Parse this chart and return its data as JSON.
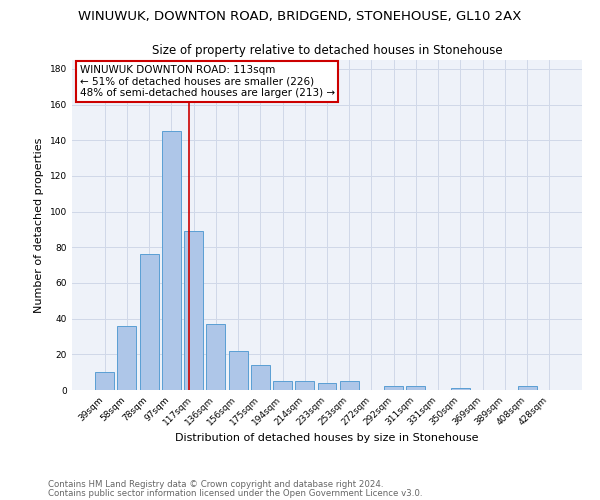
{
  "title": "WINUWUK, DOWNTON ROAD, BRIDGEND, STONEHOUSE, GL10 2AX",
  "subtitle": "Size of property relative to detached houses in Stonehouse",
  "xlabel": "Distribution of detached houses by size in Stonehouse",
  "ylabel": "Number of detached properties",
  "footnote1": "Contains HM Land Registry data © Crown copyright and database right 2024.",
  "footnote2": "Contains public sector information licensed under the Open Government Licence v3.0.",
  "categories": [
    "39sqm",
    "58sqm",
    "78sqm",
    "97sqm",
    "117sqm",
    "136sqm",
    "156sqm",
    "175sqm",
    "194sqm",
    "214sqm",
    "233sqm",
    "253sqm",
    "272sqm",
    "292sqm",
    "311sqm",
    "331sqm",
    "350sqm",
    "369sqm",
    "389sqm",
    "408sqm",
    "428sqm"
  ],
  "values": [
    10,
    36,
    76,
    145,
    89,
    37,
    22,
    14,
    5,
    5,
    4,
    5,
    0,
    2,
    2,
    0,
    1,
    0,
    0,
    2,
    0
  ],
  "bar_color": "#aec6e8",
  "bar_edge_color": "#5a9fd4",
  "vline_color": "#cc0000",
  "annotation_text": "WINUWUK DOWNTON ROAD: 113sqm\n← 51% of detached houses are smaller (226)\n48% of semi-detached houses are larger (213) →",
  "annotation_box_color": "#cc0000",
  "ylim": [
    0,
    185
  ],
  "yticks": [
    0,
    20,
    40,
    60,
    80,
    100,
    120,
    140,
    160,
    180
  ],
  "grid_color": "#d0d8e8",
  "background_color": "#eef2f9",
  "title_fontsize": 9.5,
  "subtitle_fontsize": 8.5,
  "axis_label_fontsize": 8,
  "tick_fontsize": 6.5,
  "annotation_fontsize": 7.5,
  "footnote_fontsize": 6.2
}
